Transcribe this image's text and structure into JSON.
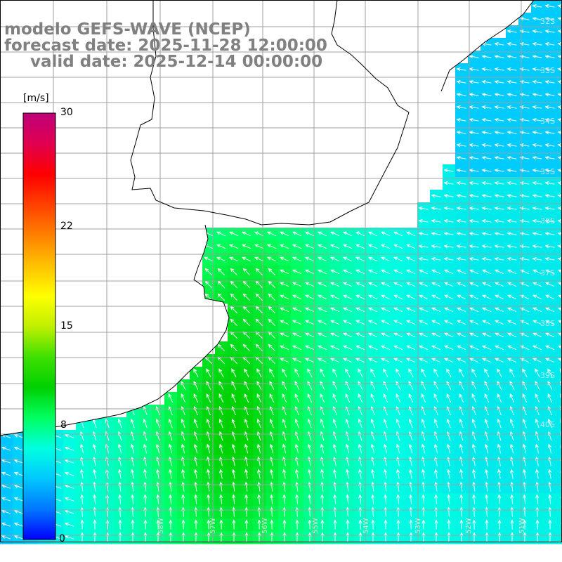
{
  "title": {
    "model_line": "modelo GEFS-WAVE (NCEP)",
    "forecast_line": "forecast date: 2025-11-28 12:00:00",
    "valid_line": "valid date: 2025-12-14 00:00:00"
  },
  "colorbar": {
    "unit": "[m/s]",
    "min": 0,
    "max": 30,
    "ticks": [
      {
        "label": "30",
        "value": 30
      },
      {
        "label": "22",
        "value": 22
      },
      {
        "label": "15",
        "value": 15
      },
      {
        "label": "8",
        "value": 8
      },
      {
        "label": "0",
        "value": 0
      }
    ],
    "colors": [
      "#0000ff",
      "#0077ff",
      "#00c8ff",
      "#00ffe0",
      "#00ff60",
      "#00d000",
      "#40e000",
      "#c0f000",
      "#ffff00",
      "#ffc000",
      "#ff8000",
      "#ff4000",
      "#ff0000",
      "#e00050",
      "#c0007a"
    ]
  },
  "map": {
    "land_color": "#ffffff",
    "grid_color": "#a0a0a0",
    "coast_color": "#000000",
    "arrow_color": "#ffffff",
    "latitude_labels": [
      "32S",
      "33S",
      "34S",
      "35S",
      "36S",
      "37S",
      "38S",
      "39S",
      "40S"
    ],
    "longitude_labels": [
      "58W",
      "57W",
      "56W",
      "55W",
      "54W",
      "53W",
      "52W",
      "51W"
    ]
  }
}
